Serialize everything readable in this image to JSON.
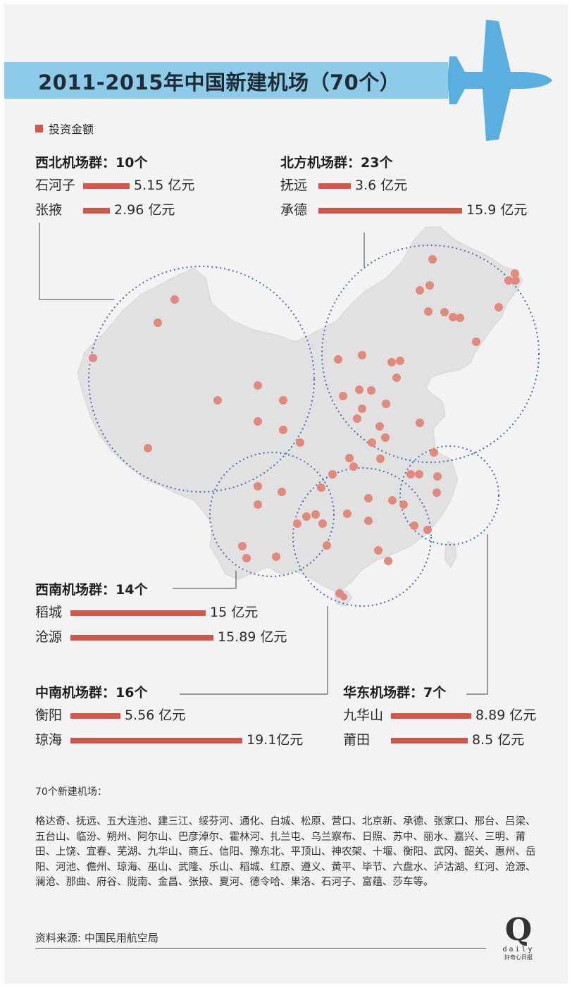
{
  "title": "2011-2015年中国新建机场（70个）",
  "legend": "投资金额",
  "unit": "亿元",
  "colors": {
    "bar": "#d2574a",
    "band": "#8ecbe8",
    "plane": "#5aaee0",
    "circle": "#3f6fb3"
  },
  "chart_data": {
    "type": "bar",
    "title": "2011-2015年中国新建机场（70个）",
    "legend": [
      "投资金额"
    ],
    "unit": "亿元",
    "groups": [
      {
        "name": "西北机场群",
        "count": "10个",
        "airports": [
          {
            "name": "石河子",
            "value": 5.15,
            "label": "5.15 亿元"
          },
          {
            "name": "张掖",
            "value": 2.96,
            "label": "2.96 亿元"
          }
        ]
      },
      {
        "name": "北方机场群",
        "count": "23个",
        "airports": [
          {
            "name": "抚远",
            "value": 3.6,
            "label": "3.6 亿元"
          },
          {
            "name": "承德",
            "value": 15.9,
            "label": "15.9 亿元"
          }
        ]
      },
      {
        "name": "西南机场群",
        "count": "14个",
        "airports": [
          {
            "name": "稻城",
            "value": 15,
            "label": "15 亿元"
          },
          {
            "name": "沧源",
            "value": 15.89,
            "label": "15.89 亿元"
          }
        ]
      },
      {
        "name": "中南机场群",
        "count": "16个",
        "airports": [
          {
            "name": "衡阳",
            "value": 5.56,
            "label": "5.56 亿元"
          },
          {
            "name": "琼海",
            "value": 19.1,
            "label": "19.1亿元"
          }
        ]
      },
      {
        "name": "华东机场群",
        "count": "7个",
        "airports": [
          {
            "name": "九华山",
            "value": 8.89,
            "label": "8.89 亿元"
          },
          {
            "name": "莆田",
            "value": 8.5,
            "label": "8.5 亿元"
          }
        ]
      }
    ]
  },
  "groups_text": [
    {
      "title": "西北机场群：10个"
    },
    {
      "title": "北方机场群：23个"
    },
    {
      "title": "西南机场群：14个"
    },
    {
      "title": "中南机场群：16个"
    },
    {
      "title": "华东机场群：7个"
    }
  ],
  "airport_list_heading": "70个新建机场：",
  "airport_list": "格达奇、抚远、五大连池、建三江、绥芬河、通化、白城、松原、营口、北京新、承德、张家口、邢台、吕梁、五台山、临汾、朔州、阿尔山、巴彦淖尔、霍林河、扎兰屯、乌兰察布、日照、苏中、丽水、嘉兴、三明、莆田、上饶、宜春、芜湖、九华山、商丘、信阳、豫东北、平顶山、神农架、十堰、衡阳、武冈、韶关、惠州、岳阳、河池、儋州、琼海、巫山、武隆、乐山、稻城、红原、遵义、黄平、毕节、六盘水、泸沽湖、红河、沧源、澜沧、那曲、府谷、陇南、金昌、张掖、夏河、德令哈、果洛、石河子、富蕴、莎车等。",
  "source": "资料来源: 中国民用航空局",
  "brand": {
    "logo": "Q",
    "word": "daily",
    "sub": "好奇心日报"
  }
}
